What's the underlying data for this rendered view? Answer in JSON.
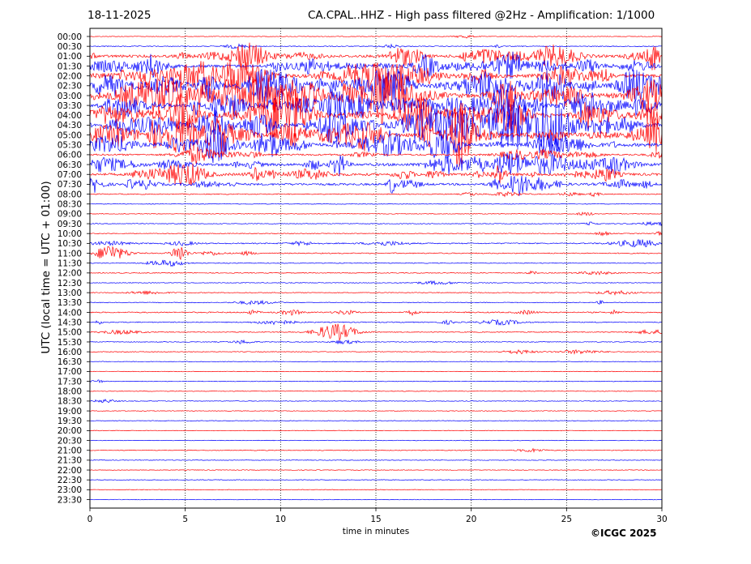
{
  "header": {
    "date": "18-11-2025",
    "title": "CA.CPAL..HHZ - High pass filtered @2Hz - Amplification: 1/1000"
  },
  "footer": {
    "copyright": "©ICGC 2025"
  },
  "chart_data": {
    "type": "line",
    "title": "CA.CPAL..HHZ - High pass filtered @2Hz - Amplification: 1/1000",
    "xlabel": "time in minutes",
    "ylabel": "UTC (local time = UTC + 01:00)",
    "xlim": [
      0,
      30
    ],
    "x_ticks": [
      "0",
      "5",
      "10",
      "15",
      "20",
      "25",
      "30"
    ],
    "grid": "vertical dotted lines at 5-minute intervals",
    "colors": [
      "#ff0000",
      "#0000ff"
    ],
    "rows": [
      "00:00",
      "00:30",
      "01:00",
      "01:30",
      "02:00",
      "02:30",
      "03:00",
      "03:30",
      "04:00",
      "04:30",
      "05:00",
      "05:30",
      "06:00",
      "06:30",
      "07:00",
      "07:30",
      "08:00",
      "08:30",
      "09:00",
      "09:30",
      "10:00",
      "10:30",
      "11:00",
      "11:30",
      "12:00",
      "12:30",
      "13:00",
      "13:30",
      "14:00",
      "14:30",
      "15:00",
      "15:30",
      "16:00",
      "16:30",
      "17:00",
      "17:30",
      "18:00",
      "18:30",
      "19:00",
      "19:30",
      "20:00",
      "20:30",
      "21:00",
      "21:30",
      "22:00",
      "22:30",
      "23:00",
      "23:30"
    ],
    "activity": [
      0.02,
      0.08,
      0.55,
      0.6,
      0.75,
      0.85,
      0.95,
      0.85,
      0.95,
      1.0,
      0.9,
      0.7,
      0.3,
      0.6,
      0.5,
      0.4,
      0.1,
      0.01,
      0.02,
      0.05,
      0.05,
      0.15,
      0.12,
      0.05,
      0.06,
      0.03,
      0.05,
      0.05,
      0.15,
      0.1,
      0.08,
      0.04,
      0.04,
      0.01,
      0.01,
      0.02,
      0.01,
      0.02,
      0.01,
      0.01,
      0.01,
      0.01,
      0.02,
      0.01,
      0.01,
      0.01,
      0.01,
      0.01
    ]
  }
}
